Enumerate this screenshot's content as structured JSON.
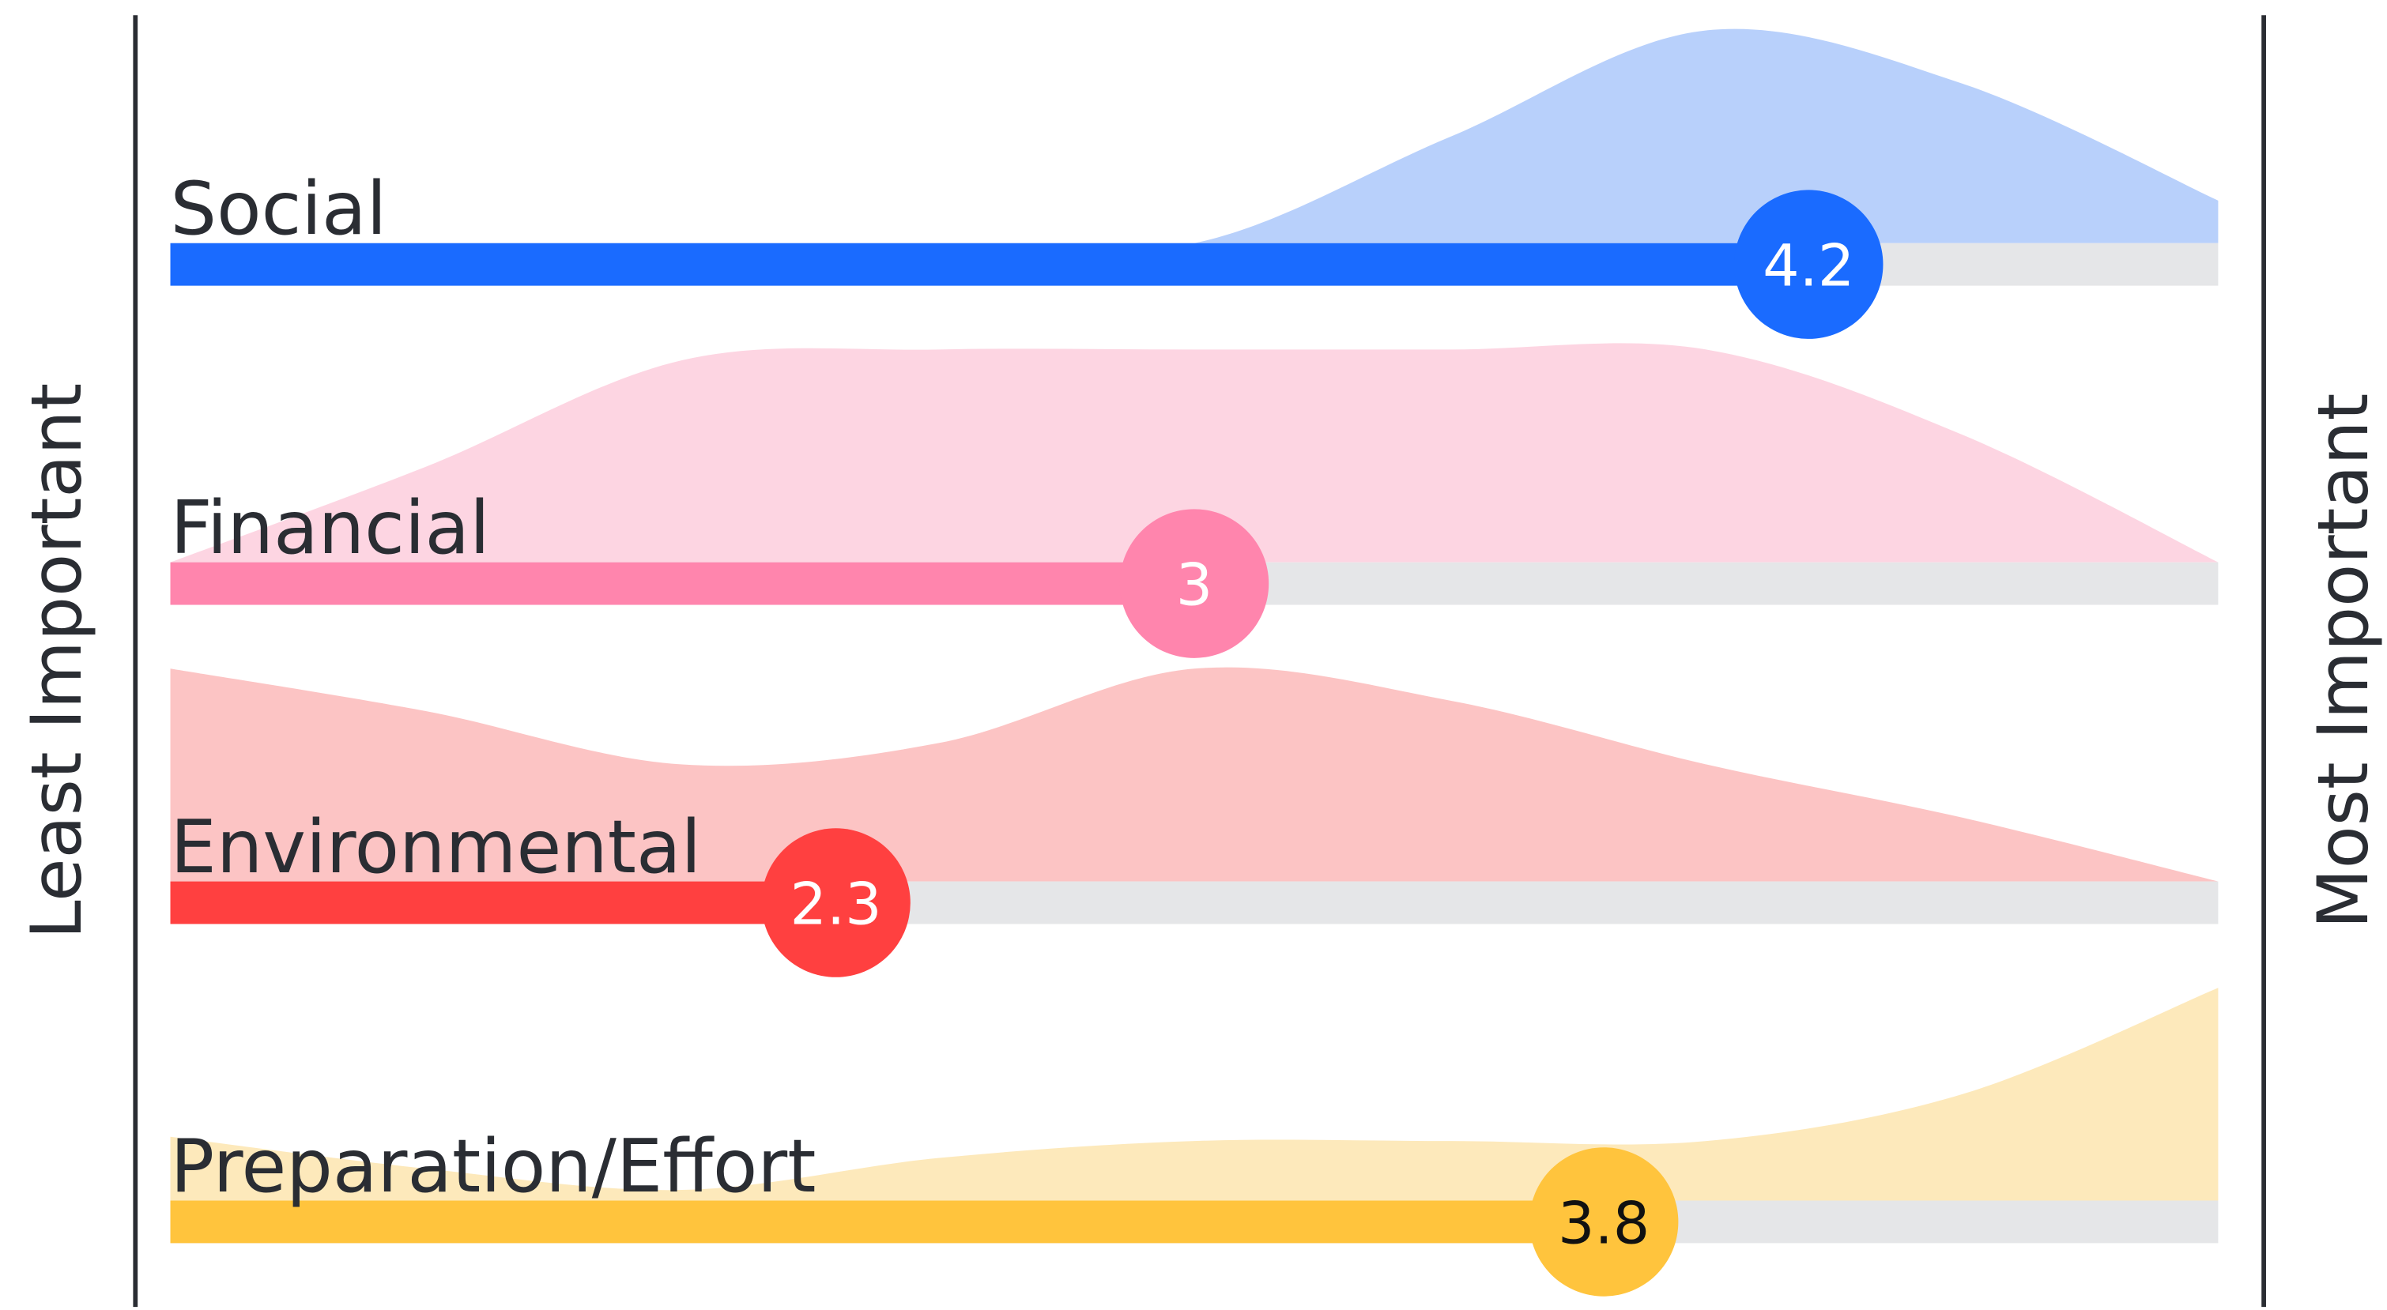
{
  "chart_data": {
    "type": "rating-distribution",
    "left_label": "Least Important",
    "right_label": "Most Important",
    "xlim": [
      1,
      5
    ],
    "distribution_x": [
      1,
      1.5,
      2,
      2.5,
      3,
      3.5,
      4,
      4.5,
      5
    ],
    "series": [
      {
        "name": "Social",
        "color": "#1a6bff",
        "area_color": "#b8d0fb",
        "label_color": "#ffffff",
        "value": 4.2,
        "distribution": [
          0,
          0,
          0,
          0,
          0,
          50,
          100,
          75,
          20
        ]
      },
      {
        "name": "Financial",
        "color": "#ff85ad",
        "area_color": "#fdd5e2",
        "label_color": "#ffffff",
        "value": 3,
        "distribution": [
          0,
          45,
          95,
          100,
          100,
          100,
          100,
          60,
          0
        ]
      },
      {
        "name": "Environmental",
        "color": "#ff4040",
        "area_color": "#fcc4c4",
        "label_color": "#ffffff",
        "value": 2.3,
        "distribution": [
          100,
          80,
          55,
          65,
          100,
          85,
          55,
          30,
          0
        ]
      },
      {
        "name": "Preparation/Effort",
        "color": "#ffc43d",
        "area_color": "#fde9bb",
        "label_color": "#111111",
        "value": 3.8,
        "distribution": [
          30,
          15,
          5,
          20,
          28,
          28,
          28,
          50,
          100
        ]
      }
    ]
  }
}
